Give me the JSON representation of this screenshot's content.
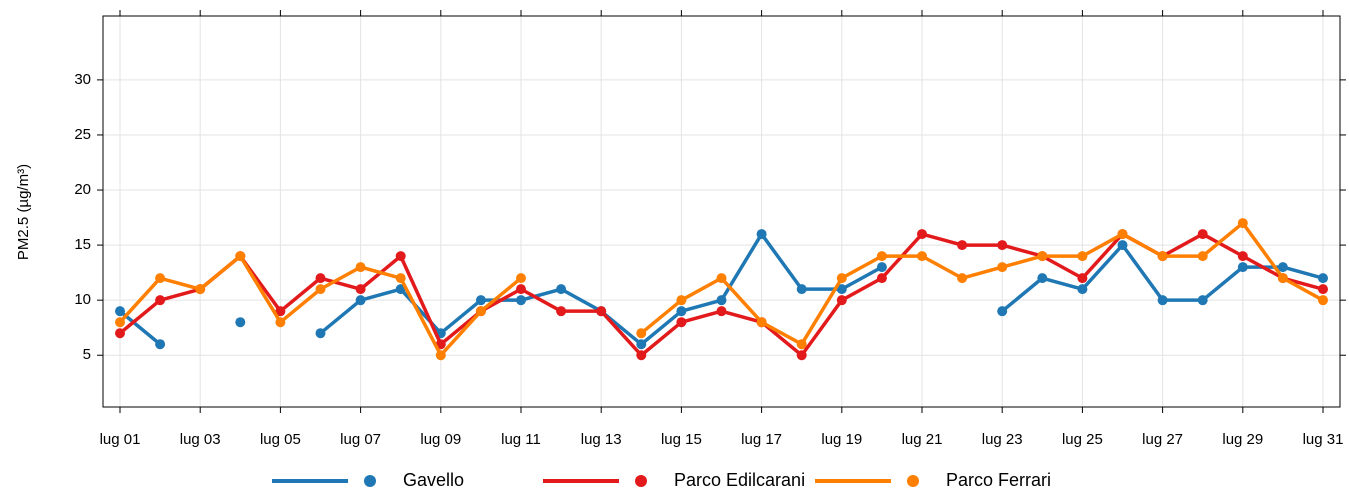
{
  "chart_data": {
    "type": "line",
    "y_label": "PM2.5 (µg/m³)",
    "categories": [
      "lug 01",
      null,
      "lug 03",
      null,
      "lug 05",
      null,
      "lug 07",
      null,
      "lug 09",
      null,
      "lug 11",
      null,
      "lug 13",
      null,
      "lug 15",
      null,
      "lug 17",
      null,
      "lug 19",
      null,
      "lug 21",
      null,
      "lug 23",
      null,
      "lug 25",
      null,
      "lug 27",
      null,
      "lug 29",
      null,
      "lug 31"
    ],
    "series": [
      {
        "name": "Gavello",
        "color": "#1f78b4",
        "values": [
          9,
          6,
          null,
          8,
          null,
          7,
          10,
          11,
          7,
          10,
          10,
          11,
          9,
          6,
          9,
          10,
          16,
          11,
          11,
          13,
          null,
          null,
          9,
          12,
          11,
          15,
          10,
          10,
          13,
          13,
          12
        ]
      },
      {
        "name": "Parco Edilcarani",
        "color": "#e31a1c",
        "values": [
          7,
          10,
          11,
          14,
          9,
          12,
          11,
          14,
          6,
          9,
          11,
          9,
          9,
          5,
          8,
          9,
          8,
          5,
          10,
          12,
          16,
          15,
          15,
          14,
          12,
          16,
          14,
          16,
          14,
          12,
          11
        ]
      },
      {
        "name": "Parco Ferrari",
        "color": "#ff7f00",
        "values": [
          8,
          12,
          11,
          14,
          8,
          11,
          13,
          12,
          5,
          9,
          12,
          null,
          null,
          7,
          10,
          12,
          8,
          6,
          12,
          14,
          14,
          12,
          13,
          14,
          14,
          16,
          14,
          14,
          17,
          12,
          10
        ]
      }
    ],
    "ylim": [
      0.3,
      35.8
    ],
    "yticks": [
      5,
      10,
      15,
      20,
      25,
      30
    ],
    "grid": true
  }
}
